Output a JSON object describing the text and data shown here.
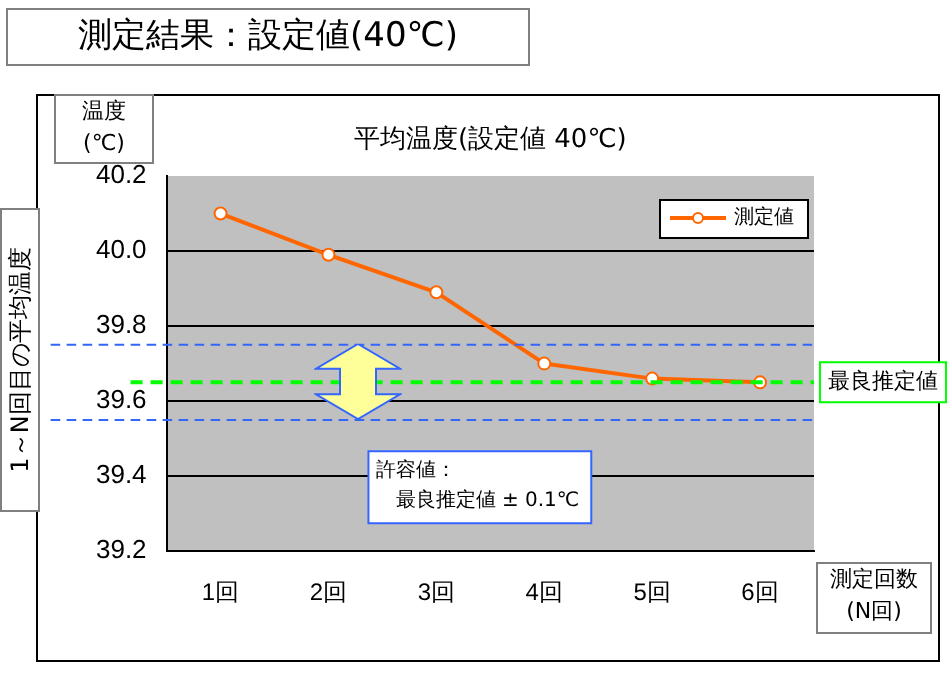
{
  "chart_data": {
    "type": "line",
    "title": "測定結果：設定値(40℃)",
    "subtitle": "平均温度(設定値 40℃)",
    "ylabel": "1～N回目の平均温度",
    "xlabel": "測定回数\n(N回)",
    "categories": [
      "1回",
      "2回",
      "3回",
      "4回",
      "5回",
      "6回"
    ],
    "series": [
      {
        "name": "測定値",
        "color": "#ff6600",
        "values": [
          40.1,
          39.99,
          39.89,
          39.7,
          39.66,
          39.65
        ]
      }
    ],
    "marker": "circle",
    "ylim": [
      39.2,
      40.2
    ],
    "yticks": [
      39.2,
      39.4,
      39.6,
      39.8,
      {
        "value": 40,
        "label": "40.0"
      },
      40.2
    ],
    "grid": "y",
    "legend": "top right",
    "ref_lines": [
      {
        "axis": "y",
        "value": 39.65,
        "label": "最良推定値",
        "color": "#00ff00",
        "line_style": "dashed"
      },
      {
        "axis": "y",
        "value": 39.75,
        "label": null,
        "color": "#3366ff",
        "line_style": "dashed"
      },
      {
        "axis": "y",
        "value": 39.55,
        "label": null,
        "color": "#3366ff",
        "line_style": "dashed"
      }
    ],
    "annotations": [
      "温度\n(℃)",
      "許容値：",
      "最良推定値 ± 0.1℃"
    ]
  }
}
